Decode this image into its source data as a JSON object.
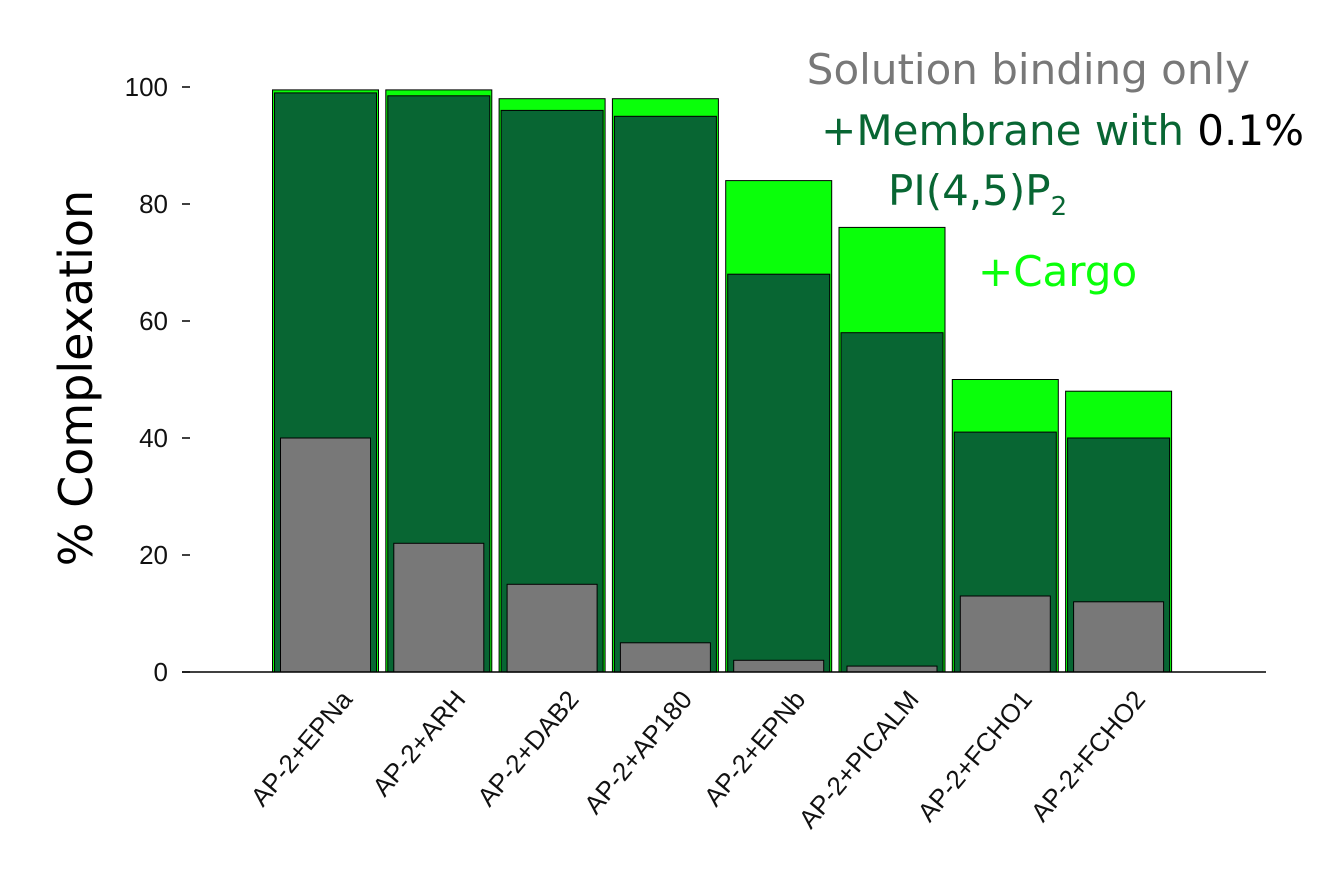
{
  "chart_data": {
    "type": "bar",
    "categories": [
      "AP-2+EPNa",
      "AP-2+ARH",
      "AP-2+DAB2",
      "AP-2+AP180",
      "AP-2+EPNb",
      "AP-2+PICALM",
      "AP-2+FCHO1",
      "AP-2+FCHO2"
    ],
    "series": [
      {
        "key": "cargo",
        "values": [
          99.5,
          99.5,
          98,
          98,
          84,
          76,
          50,
          48
        ],
        "color": "#0aff0a"
      },
      {
        "key": "membrane",
        "values": [
          99,
          98.5,
          96,
          95,
          68,
          58,
          41,
          40
        ],
        "color": "#086633"
      },
      {
        "key": "solution",
        "values": [
          40,
          22,
          15,
          5,
          2,
          1,
          13,
          12
        ],
        "color": "#787878"
      }
    ],
    "ylabel": "% Complexation",
    "ylim": [
      0,
      100
    ],
    "yticks": [
      "0",
      "20",
      "40",
      "60",
      "80",
      "100"
    ],
    "grid": false,
    "legend": {
      "solution": {
        "text": "Solution binding only",
        "color": "#787878"
      },
      "membrane": {
        "text_a": "+Membrane with ",
        "text_b": "0.1%",
        "text_c": "PI(4,5)P",
        "text_sub": "2",
        "color": "#086633",
        "color_b": "#000000"
      },
      "cargo": {
        "text": "+Cargo",
        "color": "#0aff0a"
      }
    }
  }
}
